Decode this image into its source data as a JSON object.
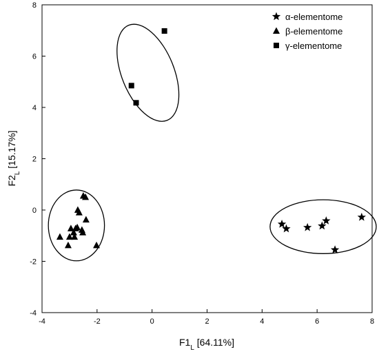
{
  "chart_data": {
    "type": "scatter",
    "xlabel": {
      "main": "F1",
      "sub": "L",
      "rest": " [64.11%]"
    },
    "ylabel": {
      "main": "F2",
      "sub": "L",
      "rest": " [15.17%]"
    },
    "xlim": [
      -4,
      8
    ],
    "ylim": [
      -4,
      8
    ],
    "xticks": [
      "-4",
      "-2",
      "0",
      "2",
      "4",
      "6",
      "8"
    ],
    "yticks": [
      "-4",
      "-2",
      "0",
      "2",
      "4",
      "6",
      "8"
    ],
    "grid": false,
    "legend_position": "top-right",
    "series": [
      {
        "name": "α-elementome",
        "marker": "star",
        "points": [
          [
            4.72,
            -0.55
          ],
          [
            4.88,
            -0.73
          ],
          [
            5.65,
            -0.68
          ],
          [
            6.18,
            -0.62
          ],
          [
            6.33,
            -0.42
          ],
          [
            6.65,
            -1.55
          ],
          [
            7.62,
            -0.28
          ]
        ],
        "ellipse": {
          "cx": 6.22,
          "cy": -0.65,
          "rx": 1.93,
          "ry": 1.05
        }
      },
      {
        "name": "β-elementome",
        "marker": "triangle",
        "points": [
          [
            -3.35,
            -1.05
          ],
          [
            -3.05,
            -1.38
          ],
          [
            -3.0,
            -1.05
          ],
          [
            -2.95,
            -0.72
          ],
          [
            -2.85,
            -0.88
          ],
          [
            -2.82,
            -1.05
          ],
          [
            -2.78,
            -0.72
          ],
          [
            -2.72,
            -0.68
          ],
          [
            -2.7,
            0.0
          ],
          [
            -2.65,
            -0.1
          ],
          [
            -2.55,
            -0.78
          ],
          [
            -2.52,
            -0.88
          ],
          [
            -2.5,
            0.55
          ],
          [
            -2.42,
            0.5
          ],
          [
            -2.4,
            -0.38
          ],
          [
            -2.02,
            -1.38
          ]
        ],
        "ellipse": {
          "cx": -2.75,
          "cy": -0.6,
          "rx": 1.02,
          "ry": 1.38
        }
      },
      {
        "name": "γ-elementome",
        "marker": "square",
        "points": [
          [
            -0.75,
            4.85
          ],
          [
            -0.58,
            4.18
          ],
          [
            0.45,
            6.98
          ]
        ],
        "ellipse": {
          "cx": -0.15,
          "cy": 5.35,
          "rx": 0.95,
          "ry": 2.0,
          "rotate": -22
        }
      }
    ]
  }
}
